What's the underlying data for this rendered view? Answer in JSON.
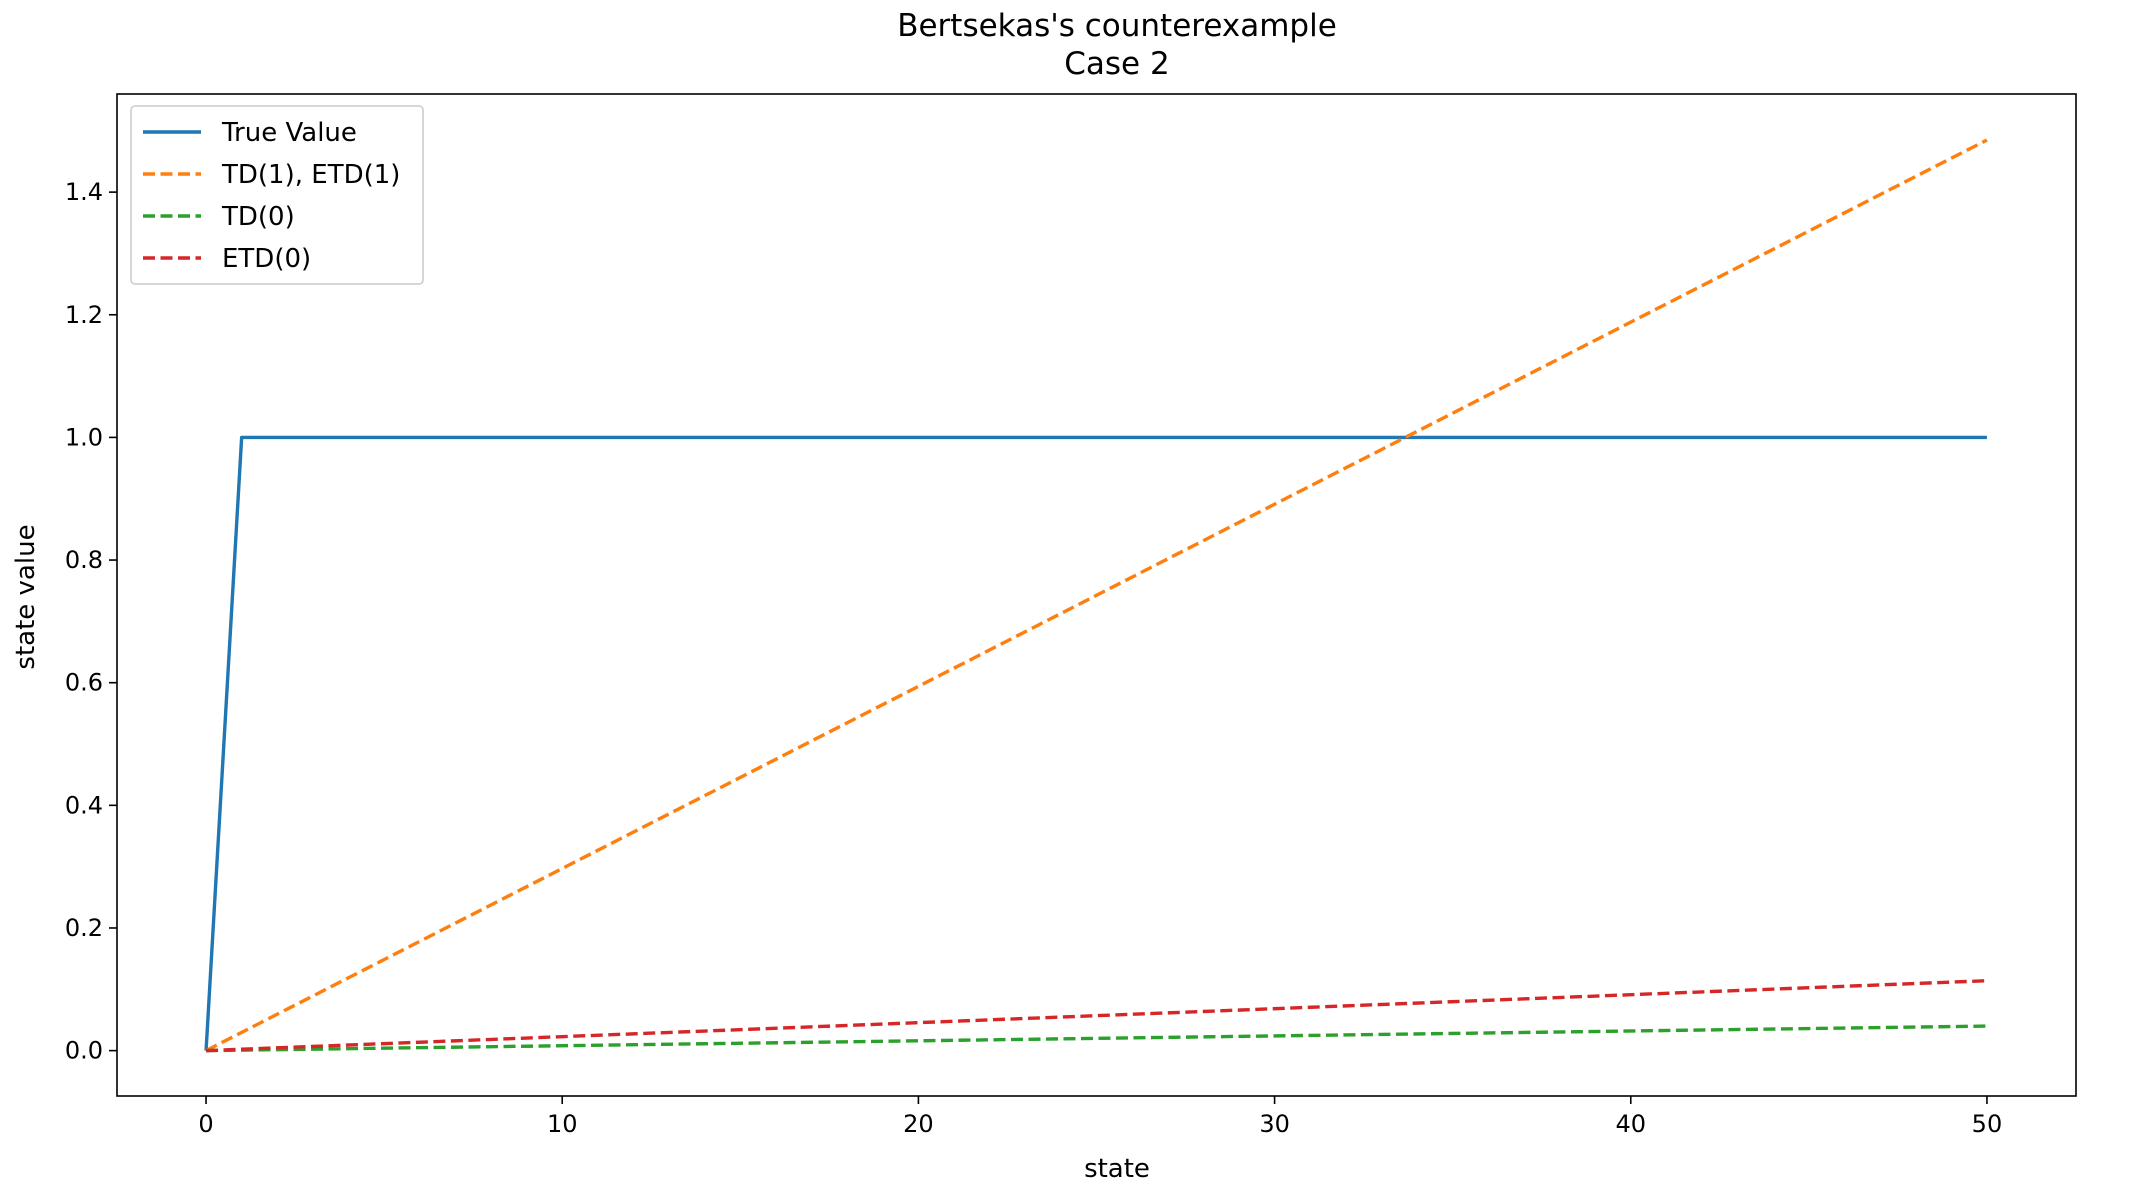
{
  "chart_data": {
    "type": "line",
    "title": "Bertsekas's counterexample",
    "subtitle": "Case 2",
    "xlabel": "state",
    "ylabel": "state value",
    "xlim": [
      -2.5,
      52.5
    ],
    "ylim": [
      -0.074,
      1.56
    ],
    "xticks": [
      0,
      10,
      20,
      30,
      40,
      50
    ],
    "yticks": [
      0.0,
      0.2,
      0.4,
      0.6,
      0.8,
      1.0,
      1.2,
      1.4
    ],
    "xtick_labels": [
      "0",
      "10",
      "20",
      "30",
      "40",
      "50"
    ],
    "ytick_labels": [
      "0.0",
      "0.2",
      "0.4",
      "0.6",
      "0.8",
      "1.0",
      "1.2",
      "1.4"
    ],
    "grid": false,
    "legend_position": "top-left",
    "series": [
      {
        "name": "True Value",
        "style": "solid",
        "color": "#1f77b4",
        "x": [
          0,
          1,
          50
        ],
        "y": [
          0.0,
          1.0,
          1.0
        ]
      },
      {
        "name": "TD(1), ETD(1)",
        "style": "dashed",
        "color": "#ff7f0e",
        "x": [
          0,
          50
        ],
        "y": [
          0.0,
          1.485
        ]
      },
      {
        "name": "TD(0)",
        "style": "dashed",
        "color": "#2ca02c",
        "x": [
          0,
          50
        ],
        "y": [
          0.0,
          0.04
        ]
      },
      {
        "name": "ETD(0)",
        "style": "dashed",
        "color": "#d62728",
        "x": [
          0,
          50
        ],
        "y": [
          0.0,
          0.114
        ]
      }
    ]
  }
}
